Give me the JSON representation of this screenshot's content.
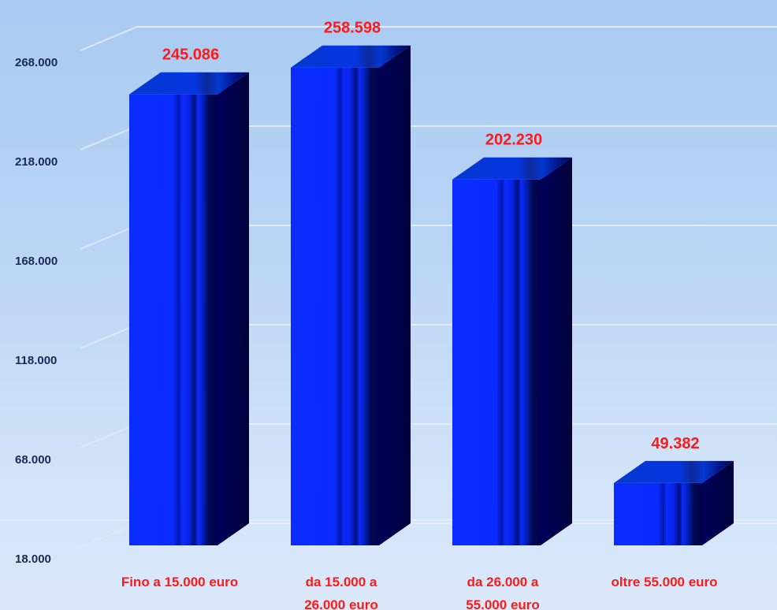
{
  "chart_data": {
    "type": "bar",
    "categories": [
      [
        "Fino a 15.000 euro"
      ],
      [
        "da 15.000 a",
        "26.000 euro"
      ],
      [
        "da 26.000 a",
        "55.000 euro"
      ],
      [
        "oltre 55.000 euro"
      ]
    ],
    "values": [
      245086,
      258598,
      202230,
      49382
    ],
    "value_labels": [
      "245.086",
      "258.598",
      "202.230",
      "49.382"
    ],
    "yticks": [
      18000,
      68000,
      118000,
      168000,
      218000,
      268000
    ],
    "ytick_labels": [
      "18.000",
      "68.000",
      "118.000",
      "168.000",
      "218.000",
      "268.000"
    ],
    "ylim": [
      18000,
      268000
    ],
    "title": "",
    "xlabel": "",
    "ylabel": "",
    "grid": true,
    "legend": "none",
    "colors": {
      "bar_front": "#0a2bff",
      "bar_top": "#0438d0",
      "bar_side": "#00004a",
      "label": "#ff1a1a",
      "tick": "#1a2a55"
    }
  }
}
